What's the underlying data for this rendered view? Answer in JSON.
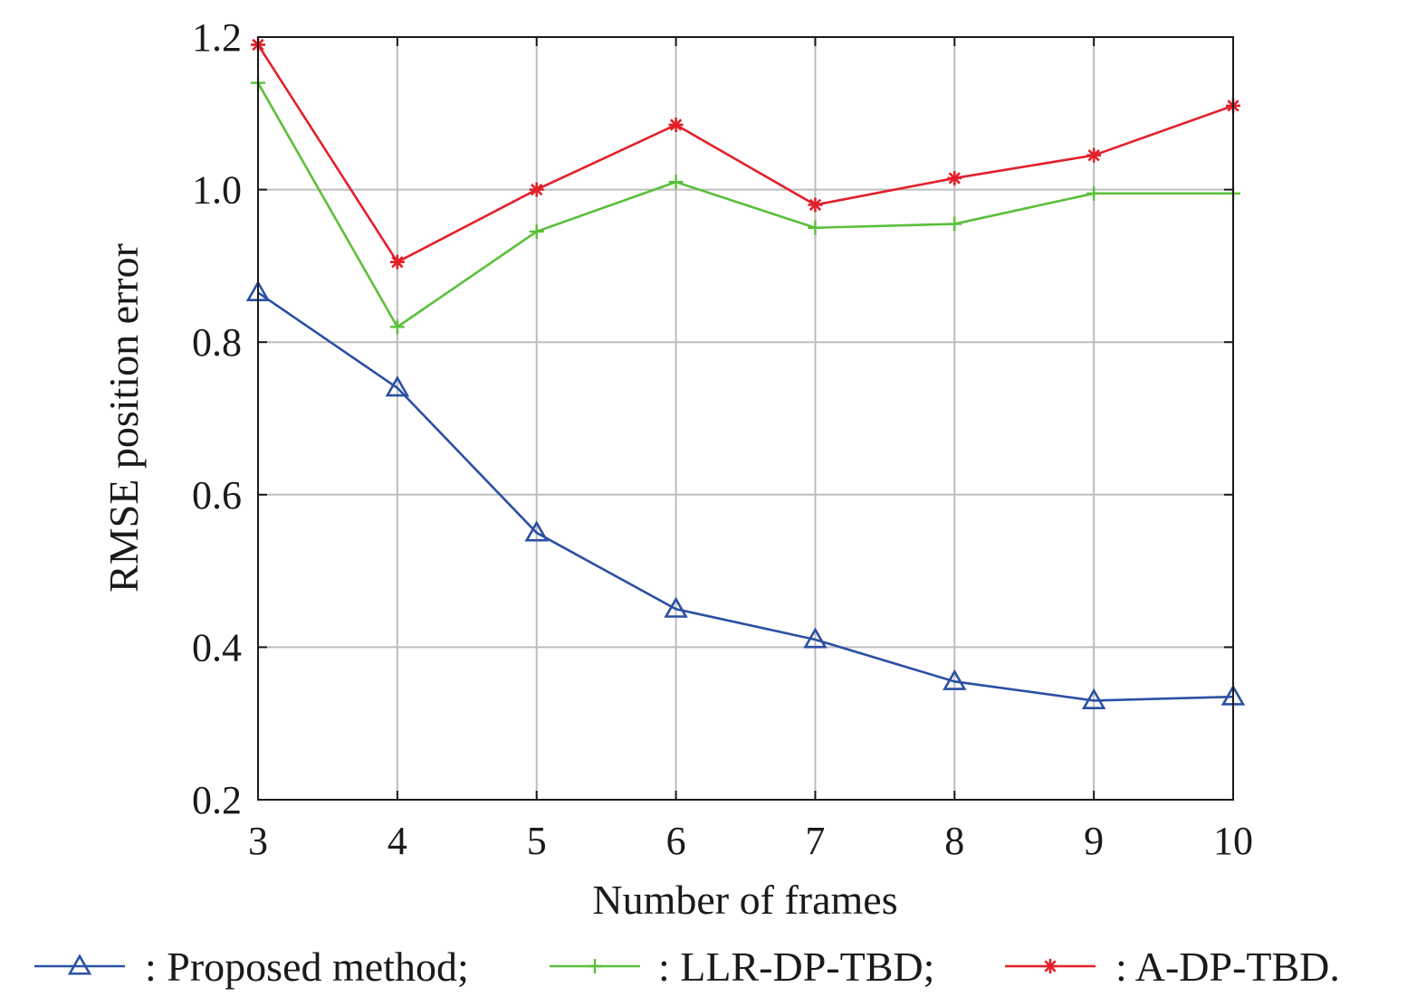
{
  "chart_data": {
    "type": "line",
    "title": "",
    "xlabel": "Number of frames",
    "ylabel": "RMSE position error",
    "x": [
      3,
      4,
      5,
      6,
      7,
      8,
      9,
      10
    ],
    "xlim": [
      3,
      10
    ],
    "ylim": [
      0.2,
      1.2
    ],
    "xticks": [
      "3",
      "4",
      "5",
      "6",
      "7",
      "8",
      "9",
      "10"
    ],
    "yticks": [
      "0.2",
      "0.4",
      "0.6",
      "0.8",
      "1.0",
      "1.2"
    ],
    "grid": true,
    "legend_position": "bottom",
    "series": [
      {
        "name": ": Proposed method;",
        "color": "#2b4fa3",
        "marker": "triangle",
        "values": [
          0.865,
          0.74,
          0.55,
          0.45,
          0.41,
          0.355,
          0.33,
          0.335
        ]
      },
      {
        "name": ": LLR-DP-TBD;",
        "color": "#5bbf3a",
        "marker": "plus",
        "values": [
          1.14,
          0.82,
          0.945,
          1.01,
          0.95,
          0.955,
          0.995,
          0.995
        ]
      },
      {
        "name": ": A-DP-TBD.",
        "color": "#e3202a",
        "marker": "star",
        "values": [
          1.19,
          0.905,
          1.0,
          1.085,
          0.98,
          1.015,
          1.045,
          1.11
        ]
      }
    ]
  }
}
